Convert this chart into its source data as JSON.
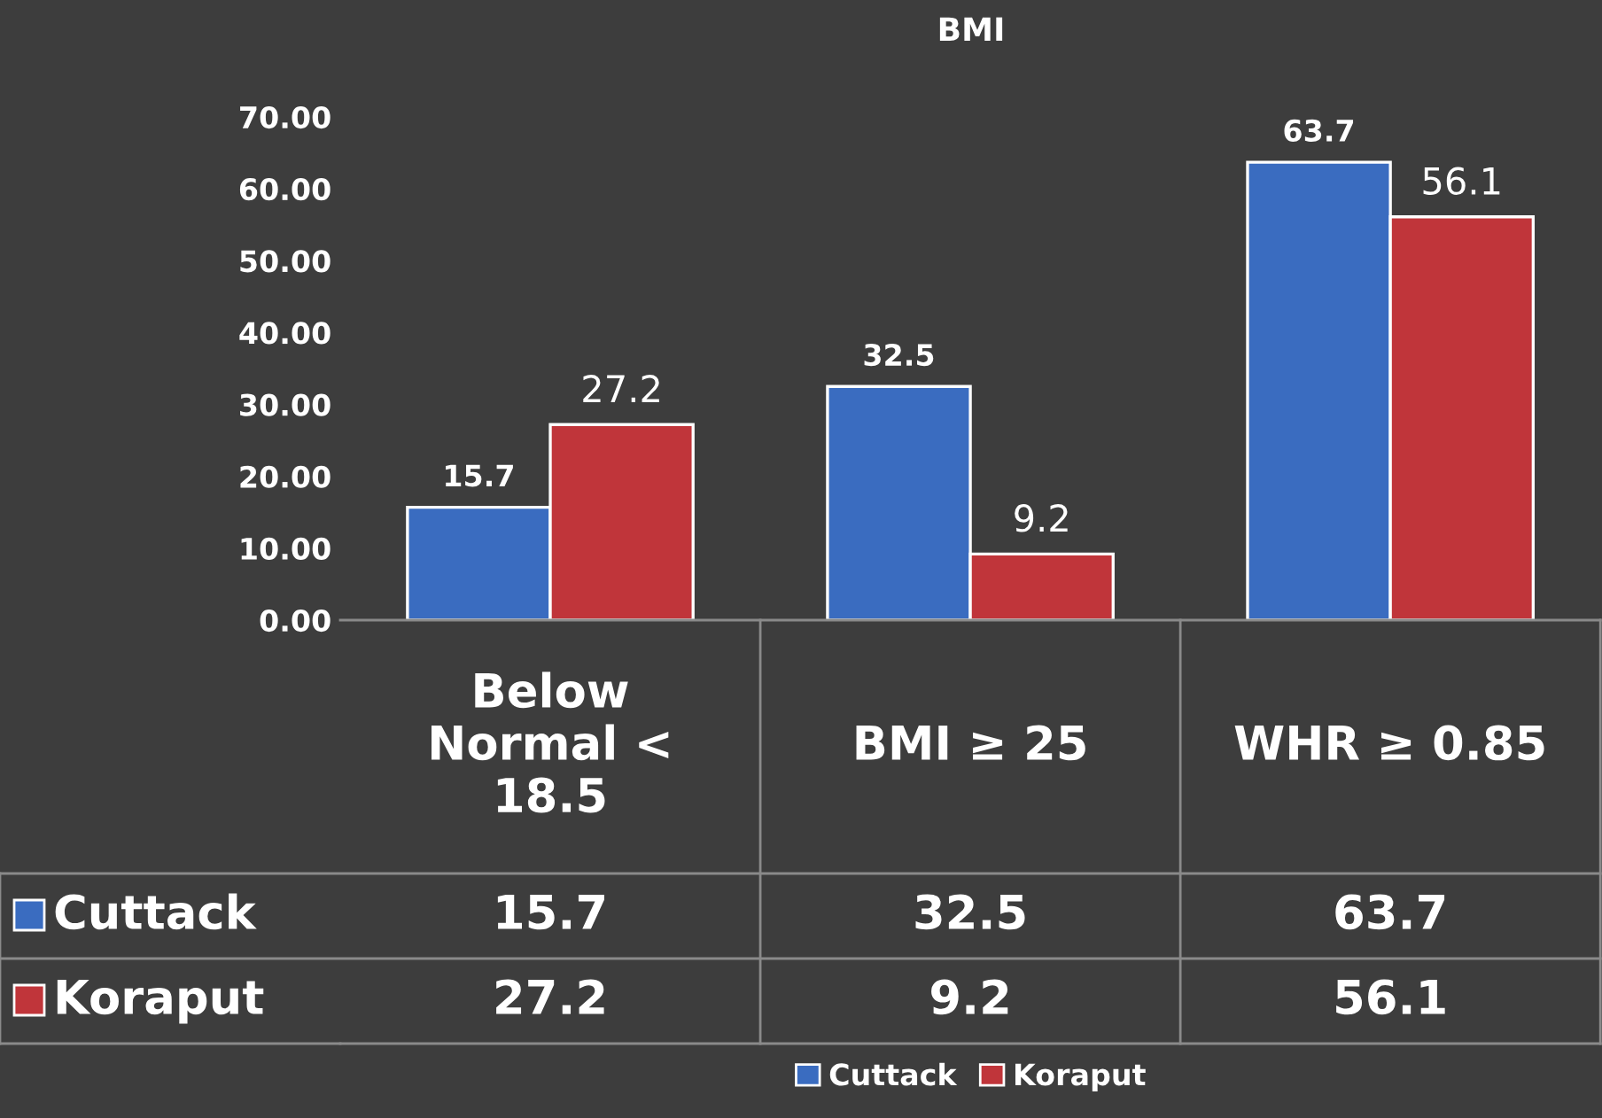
{
  "chart_data": {
    "type": "bar",
    "title": "BMI",
    "categories": [
      "Below Normal < 18.5",
      "BMI ≥ 25",
      "WHR ≥ 0.85"
    ],
    "series": [
      {
        "name": "Cuttack",
        "color": "#3a6cc0",
        "values": [
          15.7,
          32.5,
          63.7
        ],
        "value_labels": [
          "15.7",
          "32.5",
          "63.7"
        ]
      },
      {
        "name": "Koraput",
        "color": "#c0353a",
        "values": [
          27.2,
          9.2,
          56.1
        ],
        "value_labels": [
          "27.2",
          "9.2",
          "56.1"
        ]
      }
    ],
    "ylim": [
      0,
      70
    ],
    "yticks": [
      {
        "value": 0,
        "label": "0.00"
      },
      {
        "value": 10,
        "label": "10.00"
      },
      {
        "value": 20,
        "label": "20.00"
      },
      {
        "value": 30,
        "label": "30.00"
      },
      {
        "value": 40,
        "label": "40.00"
      },
      {
        "value": 50,
        "label": "50.00"
      },
      {
        "value": 60,
        "label": "60.00"
      },
      {
        "value": 70,
        "label": "70.00"
      }
    ],
    "annotations": [
      "15.7",
      "32.5",
      "63.7",
      "27.2",
      "9.2",
      "56.1"
    ],
    "grid": false,
    "legend": "bottom"
  }
}
